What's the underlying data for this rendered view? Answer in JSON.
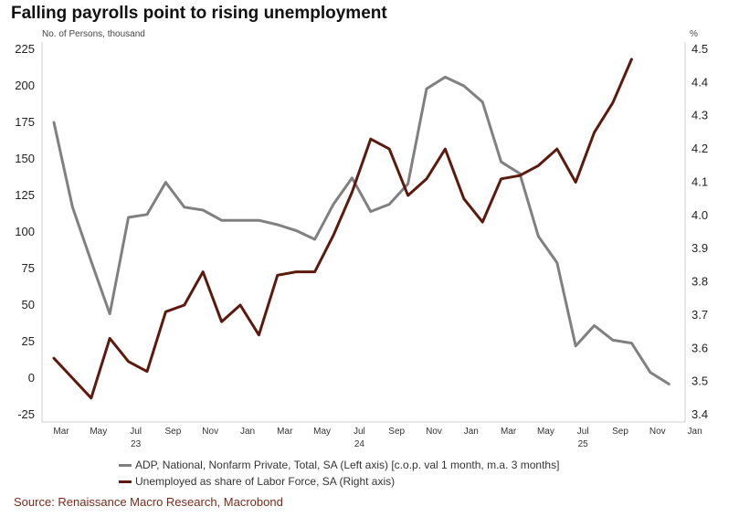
{
  "chart_data": {
    "type": "line",
    "title": "Falling payrolls point to rising unemployment",
    "ylabel_left": "No. of Persons, thousand",
    "ylabel_right": "%",
    "ylim_left": [
      -25,
      225
    ],
    "ylim_right": [
      3.4,
      4.5
    ],
    "yticks_left": [
      "225",
      "200",
      "175",
      "150",
      "125",
      "100",
      "75",
      "50",
      "25",
      "0",
      "-25"
    ],
    "yticks_right": [
      "4.5",
      "4.4",
      "4.3",
      "4.2",
      "4.1",
      "4.0",
      "3.9",
      "3.8",
      "3.7",
      "3.6",
      "3.5",
      "3.4"
    ],
    "xticks": [
      "Mar",
      "May",
      "Jul",
      "Sep",
      "Nov",
      "Jan",
      "Mar",
      "May",
      "Jul",
      "Sep",
      "Nov",
      "Jan",
      "Mar",
      "May",
      "Jul",
      "Sep",
      "Nov",
      "Jan"
    ],
    "year_labels": [
      {
        "label": "23",
        "tick_index": 2
      },
      {
        "label": "24",
        "tick_index": 8
      },
      {
        "label": "25",
        "tick_index": 14
      }
    ],
    "series": [
      {
        "name": "ADP, National, Nonfarm Private, Total, SA (Left axis) [c.o.p. val 1 month, m.a. 3 months]",
        "axis": "left",
        "color": "#808080",
        "start_month_index": 0,
        "values": [
          175,
          117,
          80,
          44,
          110,
          112,
          134,
          117,
          115,
          108,
          108,
          108,
          105,
          101,
          95,
          119,
          137,
          114,
          119,
          133,
          198,
          206,
          200,
          189,
          148,
          140,
          97,
          79,
          22,
          36,
          26,
          24,
          4,
          -4
        ]
      },
      {
        "name": "Unemployed as share of Labor Force, SA (Right axis)",
        "axis": "right",
        "color": "#5c1a0f",
        "start_month_index": 0,
        "values": [
          3.57,
          3.51,
          3.45,
          3.63,
          3.56,
          3.53,
          3.71,
          3.73,
          3.83,
          3.68,
          3.73,
          3.64,
          3.82,
          3.83,
          3.83,
          3.94,
          4.07,
          4.23,
          4.2,
          4.06,
          4.11,
          4.2,
          4.05,
          3.98,
          4.11,
          4.12,
          4.15,
          4.2,
          4.1,
          4.25,
          4.34,
          4.47
        ]
      }
    ]
  },
  "source": "Source: Renaissance Macro Research, Macrobond"
}
